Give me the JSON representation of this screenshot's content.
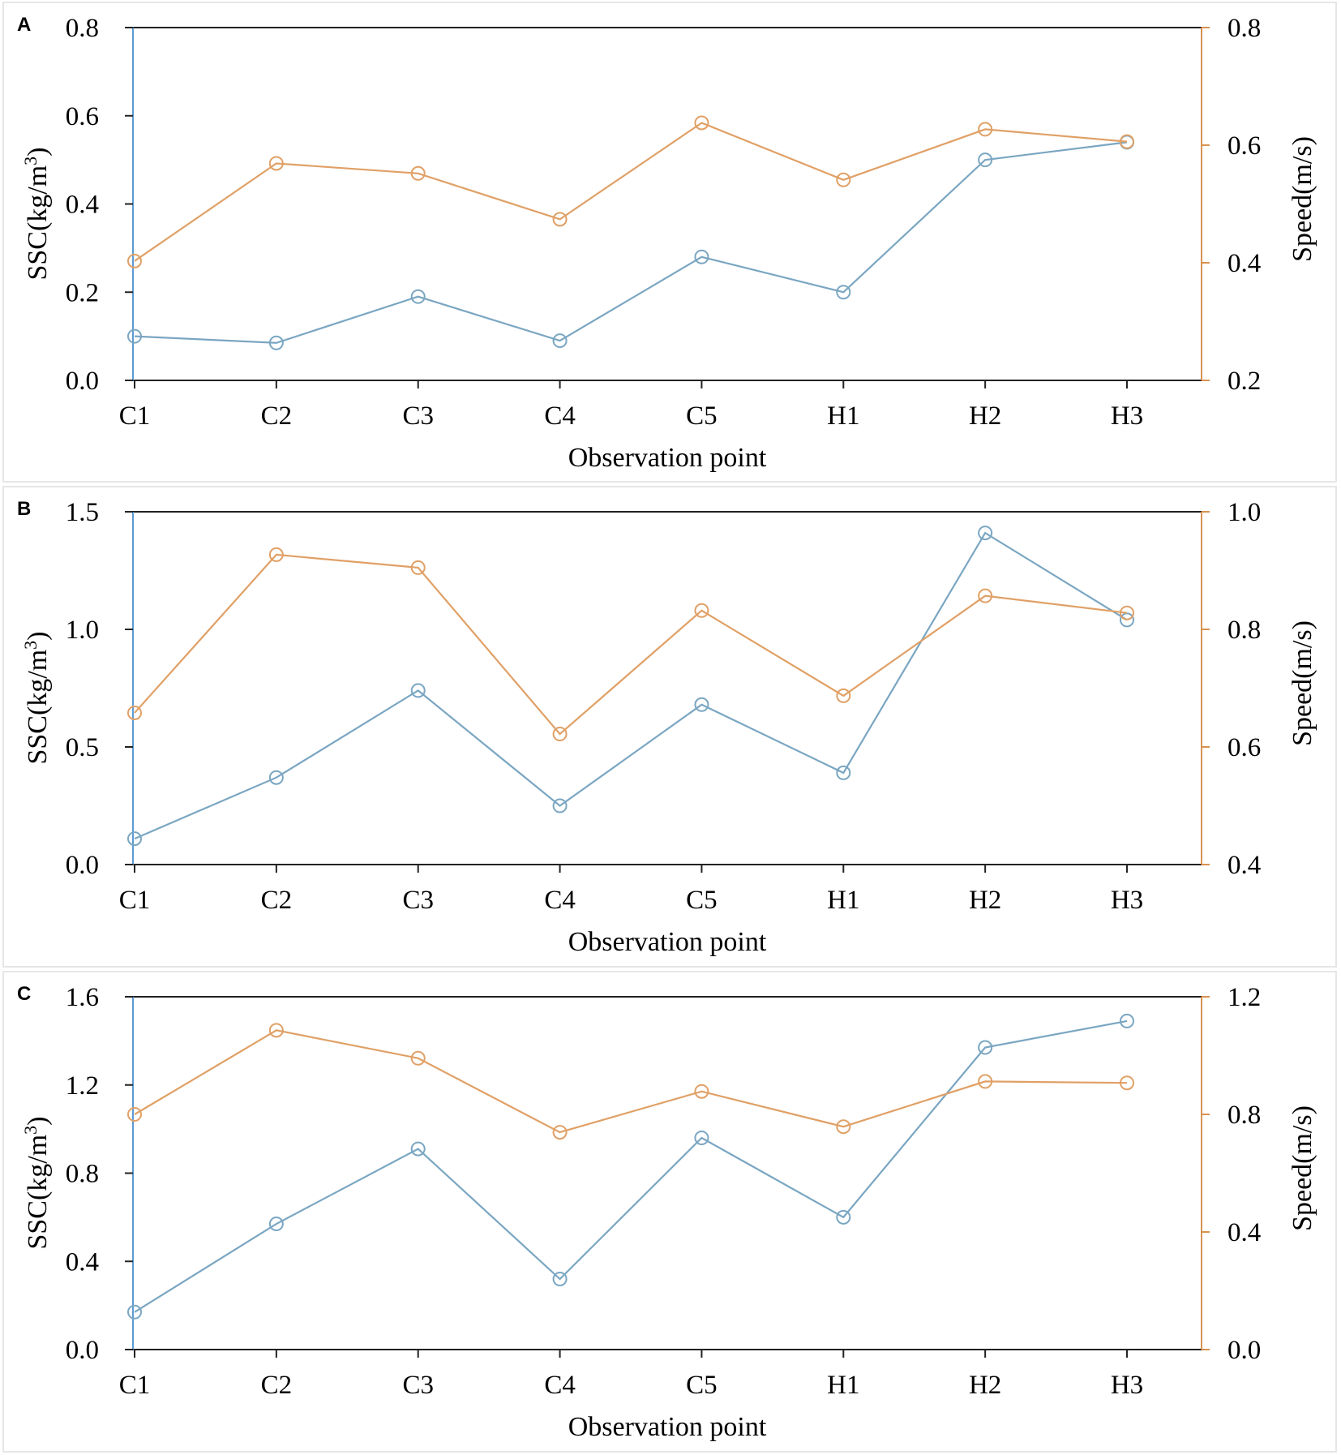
{
  "chart_data": [
    {
      "panel_label": "A",
      "type": "line",
      "categories": [
        "C1",
        "C2",
        "C3",
        "C4",
        "C5",
        "H1",
        "H2",
        "H3"
      ],
      "xlabel": "Observation  point",
      "ylabel": "SSC(kg/m",
      "ylabel_sup": "3",
      "ylabel_close": ")",
      "y2label": "Speed(m/s)",
      "ylim": [
        0,
        0.8
      ],
      "y2lim": [
        0.2,
        0.8
      ],
      "yticks": [
        "0.0",
        "0.2",
        "0.4",
        "0.6",
        "0.8"
      ],
      "y2ticks": [
        "0.2",
        "0.4",
        "0.6",
        "0.8"
      ],
      "series": [
        {
          "name": "SSC",
          "axis": "left",
          "color": "#7aa6c2",
          "values": [
            0.1,
            0.085,
            0.19,
            0.09,
            0.28,
            0.2,
            0.5,
            0.54
          ]
        },
        {
          "name": "Speed",
          "axis": "right",
          "color": "#e0a066",
          "values": [
            0.403,
            0.569,
            0.552,
            0.474,
            0.638,
            0.541,
            0.627,
            0.606
          ]
        }
      ]
    },
    {
      "panel_label": "B",
      "type": "line",
      "categories": [
        "C1",
        "C2",
        "C3",
        "C4",
        "C5",
        "H1",
        "H2",
        "H3"
      ],
      "xlabel": "Observation  point",
      "ylabel": "SSC(kg/m",
      "ylabel_sup": "3",
      "ylabel_close": ")",
      "y2label": "Speed(m/s)",
      "ylim": [
        0,
        1.5
      ],
      "y2lim": [
        0.4,
        1.0
      ],
      "yticks": [
        "0.0",
        "0.5",
        "1.0",
        "1.5"
      ],
      "y2ticks": [
        "0.4",
        "0.6",
        "0.8",
        "1.0"
      ],
      "series": [
        {
          "name": "SSC",
          "axis": "left",
          "color": "#7aa6c2",
          "values": [
            0.11,
            0.37,
            0.74,
            0.25,
            0.68,
            0.39,
            1.41,
            1.04
          ]
        },
        {
          "name": "Speed",
          "axis": "right",
          "color": "#e0a066",
          "values": [
            0.658,
            0.927,
            0.905,
            0.622,
            0.832,
            0.687,
            0.857,
            0.828
          ]
        }
      ]
    },
    {
      "panel_label": "C",
      "type": "line",
      "categories": [
        "C1",
        "C2",
        "C3",
        "C4",
        "C5",
        "H1",
        "H2",
        "H3"
      ],
      "xlabel": "Observation  point",
      "ylabel": "SSC(kg/m",
      "ylabel_sup": "3",
      "ylabel_close": ")",
      "y2label": "Speed(m/s)",
      "ylim": [
        0,
        1.6
      ],
      "y2lim": [
        0.0,
        1.2
      ],
      "yticks": [
        "0.0",
        "0.4",
        "0.8",
        "1.2",
        "1.6"
      ],
      "y2ticks": [
        "0.0",
        "0.4",
        "0.8",
        "1.2"
      ],
      "series": [
        {
          "name": "SSC",
          "axis": "left",
          "color": "#7aa6c2",
          "values": [
            0.17,
            0.57,
            0.91,
            0.32,
            0.96,
            0.6,
            1.37,
            1.49
          ]
        },
        {
          "name": "Speed",
          "axis": "right",
          "color": "#e0a066",
          "values": [
            0.8,
            1.086,
            0.991,
            0.739,
            0.878,
            0.758,
            0.912,
            0.907
          ]
        }
      ]
    }
  ]
}
